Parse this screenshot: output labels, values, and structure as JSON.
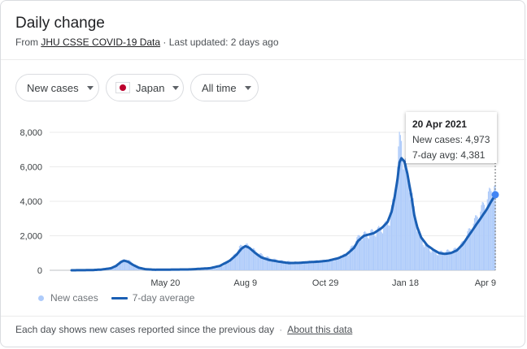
{
  "header": {
    "title": "Daily change",
    "source_prefix": "From",
    "source_link": "JHU CSSE COVID-19 Data",
    "updated": "· Last updated: 2 days ago"
  },
  "filters": {
    "metric": "New cases",
    "country": "Japan",
    "range": "All time"
  },
  "tooltip": {
    "date": "20 Apr 2021",
    "new_cases_label": "New cases:",
    "new_cases_value": "4,973",
    "avg_label": "7-day avg:",
    "avg_value": "4,381"
  },
  "legend": {
    "bars": "New cases",
    "line": "7-day average"
  },
  "footer": {
    "note": "Each day shows new cases reported since the previous day",
    "link": "About this data"
  },
  "colors": {
    "bar": "#aecbfa",
    "line": "#1a5fb4",
    "grid": "#ebebeb"
  },
  "chart_data": {
    "type": "bar",
    "ylim": [
      0,
      8000
    ],
    "yticks": [
      "0",
      "2,000",
      "4,000",
      "6,000",
      "8,000"
    ],
    "ytick_values": [
      0,
      2000,
      4000,
      6000,
      8000
    ],
    "xticks": [
      "May 20",
      "Aug 9",
      "Oct 29",
      "Jan 18",
      "Apr 9"
    ],
    "xtick_days": [
      95,
      176,
      257,
      338,
      419
    ],
    "x_start": "2020-02-15",
    "x_end": "2021-04-20",
    "series": [
      {
        "name": "New cases",
        "kind": "bars",
        "anchors": [
          [
            0,
            5
          ],
          [
            20,
            10
          ],
          [
            30,
            40
          ],
          [
            40,
            140
          ],
          [
            45,
            300
          ],
          [
            52,
            550
          ],
          [
            55,
            650
          ],
          [
            60,
            500
          ],
          [
            66,
            200
          ],
          [
            72,
            80
          ],
          [
            80,
            40
          ],
          [
            100,
            40
          ],
          [
            120,
            50
          ],
          [
            140,
            80
          ],
          [
            150,
            150
          ],
          [
            160,
            500
          ],
          [
            165,
            900
          ],
          [
            170,
            1300
          ],
          [
            175,
            1500
          ],
          [
            180,
            1350
          ],
          [
            190,
            950
          ],
          [
            200,
            700
          ],
          [
            210,
            550
          ],
          [
            220,
            500
          ],
          [
            230,
            450
          ],
          [
            240,
            500
          ],
          [
            250,
            550
          ],
          [
            260,
            550
          ],
          [
            270,
            700
          ],
          [
            280,
            1000
          ],
          [
            288,
            1700
          ],
          [
            292,
            2000
          ],
          [
            300,
            2100
          ],
          [
            310,
            2300
          ],
          [
            318,
            2600
          ],
          [
            322,
            3000
          ],
          [
            326,
            4000
          ],
          [
            328,
            5000
          ],
          [
            330,
            6000
          ],
          [
            332,
            7300
          ],
          [
            334,
            7500
          ],
          [
            336,
            6800
          ],
          [
            338,
            6000
          ],
          [
            340,
            5300
          ],
          [
            342,
            5000
          ],
          [
            344,
            4500
          ],
          [
            346,
            3800
          ],
          [
            348,
            3200
          ],
          [
            350,
            2600
          ],
          [
            352,
            2100
          ],
          [
            355,
            1700
          ],
          [
            360,
            1350
          ],
          [
            365,
            1150
          ],
          [
            370,
            1000
          ],
          [
            375,
            1050
          ],
          [
            380,
            1100
          ],
          [
            385,
            1100
          ],
          [
            390,
            1250
          ],
          [
            395,
            1500
          ],
          [
            400,
            2000
          ],
          [
            405,
            2500
          ],
          [
            410,
            3000
          ],
          [
            415,
            3500
          ],
          [
            420,
            4000
          ],
          [
            426,
            4700
          ],
          [
            429,
            4973
          ]
        ]
      },
      {
        "name": "7-day average",
        "kind": "line",
        "anchors": [
          [
            0,
            0
          ],
          [
            20,
            10
          ],
          [
            30,
            40
          ],
          [
            40,
            120
          ],
          [
            45,
            250
          ],
          [
            50,
            480
          ],
          [
            53,
            560
          ],
          [
            57,
            500
          ],
          [
            62,
            320
          ],
          [
            68,
            150
          ],
          [
            75,
            60
          ],
          [
            85,
            30
          ],
          [
            100,
            40
          ],
          [
            120,
            50
          ],
          [
            140,
            120
          ],
          [
            150,
            250
          ],
          [
            160,
            550
          ],
          [
            167,
            900
          ],
          [
            172,
            1250
          ],
          [
            176,
            1400
          ],
          [
            180,
            1300
          ],
          [
            186,
            1000
          ],
          [
            192,
            750
          ],
          [
            200,
            600
          ],
          [
            210,
            500
          ],
          [
            220,
            420
          ],
          [
            230,
            430
          ],
          [
            240,
            470
          ],
          [
            250,
            500
          ],
          [
            260,
            560
          ],
          [
            270,
            700
          ],
          [
            278,
            900
          ],
          [
            286,
            1300
          ],
          [
            290,
            1700
          ],
          [
            296,
            2000
          ],
          [
            306,
            2150
          ],
          [
            314,
            2450
          ],
          [
            320,
            2800
          ],
          [
            324,
            3400
          ],
          [
            327,
            4200
          ],
          [
            330,
            5300
          ],
          [
            332,
            6250
          ],
          [
            334,
            6500
          ],
          [
            337,
            6300
          ],
          [
            340,
            5600
          ],
          [
            344,
            4300
          ],
          [
            347,
            3200
          ],
          [
            350,
            2500
          ],
          [
            354,
            1900
          ],
          [
            360,
            1450
          ],
          [
            366,
            1200
          ],
          [
            372,
            1000
          ],
          [
            378,
            950
          ],
          [
            384,
            1000
          ],
          [
            390,
            1150
          ],
          [
            396,
            1500
          ],
          [
            402,
            2000
          ],
          [
            408,
            2500
          ],
          [
            414,
            3000
          ],
          [
            420,
            3500
          ],
          [
            425,
            4000
          ],
          [
            429,
            4381
          ]
        ]
      }
    ]
  }
}
